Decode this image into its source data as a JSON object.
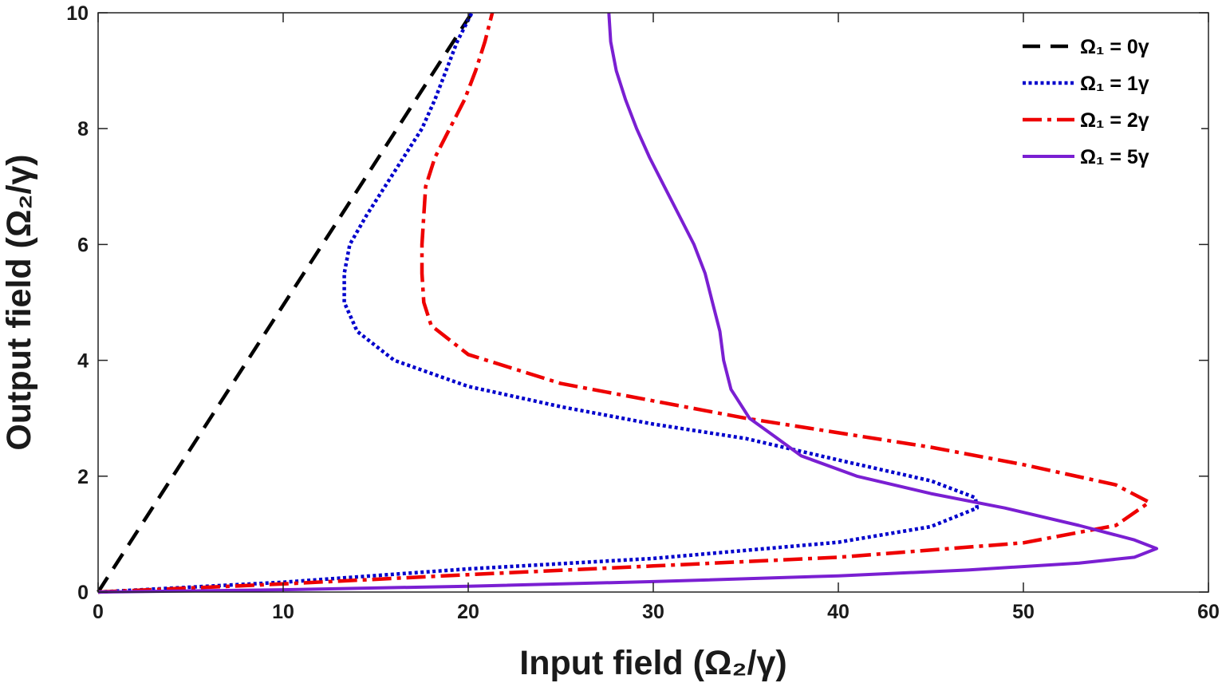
{
  "chart_data": {
    "type": "line",
    "title": "",
    "xlabel": "Input  field  (Ω₂/γ)",
    "ylabel": "Output  field  (Ω₂/γ)",
    "xlim": [
      0,
      60
    ],
    "ylim": [
      0,
      10
    ],
    "xticks": [
      0,
      10,
      20,
      30,
      40,
      50,
      60
    ],
    "yticks": [
      0,
      2,
      4,
      6,
      8,
      10
    ],
    "grid": false,
    "legend_position": "top-right",
    "series": [
      {
        "name": "Ω₁  =  0γ",
        "color": "#000000",
        "style": "dashed",
        "points": [
          [
            0,
            0
          ],
          [
            20.2,
            10
          ]
        ]
      },
      {
        "name": "Ω₁  =  1γ",
        "color": "#0000cc",
        "style": "dotted",
        "points": [
          [
            0,
            0
          ],
          [
            10,
            0.17
          ],
          [
            20,
            0.4
          ],
          [
            30,
            0.58
          ],
          [
            40,
            0.86
          ],
          [
            45,
            1.13
          ],
          [
            47.5,
            1.45
          ],
          [
            47.4,
            1.63
          ],
          [
            45,
            1.92
          ],
          [
            40,
            2.28
          ],
          [
            35,
            2.65
          ],
          [
            30,
            2.9
          ],
          [
            25,
            3.2
          ],
          [
            20,
            3.55
          ],
          [
            16,
            4.0
          ],
          [
            14,
            4.5
          ],
          [
            13.3,
            5.0
          ],
          [
            13.3,
            5.5
          ],
          [
            13.6,
            6.0
          ],
          [
            14.5,
            6.5
          ],
          [
            15.5,
            7.0
          ],
          [
            16.5,
            7.5
          ],
          [
            17.5,
            8.0
          ],
          [
            18.2,
            8.5
          ],
          [
            18.8,
            9.0
          ],
          [
            19.4,
            9.5
          ],
          [
            20.2,
            10
          ]
        ]
      },
      {
        "name": "Ω₁  =  2γ",
        "color": "#ee0000",
        "style": "dashdot",
        "points": [
          [
            0,
            0
          ],
          [
            10,
            0.14
          ],
          [
            20,
            0.3
          ],
          [
            30,
            0.45
          ],
          [
            40,
            0.6
          ],
          [
            50,
            0.85
          ],
          [
            55,
            1.15
          ],
          [
            56.8,
            1.55
          ],
          [
            55,
            1.85
          ],
          [
            50,
            2.2
          ],
          [
            45,
            2.5
          ],
          [
            40,
            2.75
          ],
          [
            35,
            3.0
          ],
          [
            30,
            3.3
          ],
          [
            25,
            3.6
          ],
          [
            20,
            4.1
          ],
          [
            18,
            4.6
          ],
          [
            17.6,
            5.0
          ],
          [
            17.5,
            5.5
          ],
          [
            17.5,
            6.0
          ],
          [
            17.7,
            7.0
          ],
          [
            18.2,
            7.5
          ],
          [
            19.0,
            8.0
          ],
          [
            19.8,
            8.5
          ],
          [
            20.4,
            9.0
          ],
          [
            20.9,
            9.5
          ],
          [
            21.3,
            10
          ]
        ]
      },
      {
        "name": "Ω₁  =  5γ",
        "color": "#7a1fd2",
        "style": "solid",
        "points": [
          [
            0,
            0
          ],
          [
            10,
            0.04
          ],
          [
            20,
            0.1
          ],
          [
            30,
            0.18
          ],
          [
            40,
            0.28
          ],
          [
            47,
            0.38
          ],
          [
            53,
            0.5
          ],
          [
            56,
            0.6
          ],
          [
            57.2,
            0.75
          ],
          [
            56,
            0.9
          ],
          [
            53,
            1.15
          ],
          [
            49,
            1.45
          ],
          [
            45,
            1.7
          ],
          [
            41,
            2.0
          ],
          [
            38,
            2.35
          ],
          [
            36.5,
            2.7
          ],
          [
            35.2,
            3.0
          ],
          [
            34.2,
            3.5
          ],
          [
            33.8,
            4.0
          ],
          [
            33.6,
            4.5
          ],
          [
            33.2,
            5.0
          ],
          [
            32.8,
            5.5
          ],
          [
            32.2,
            6.0
          ],
          [
            31.4,
            6.5
          ],
          [
            30.6,
            7.0
          ],
          [
            29.8,
            7.5
          ],
          [
            29.1,
            8.0
          ],
          [
            28.5,
            8.5
          ],
          [
            28.0,
            9.0
          ],
          [
            27.7,
            9.5
          ],
          [
            27.6,
            10
          ]
        ]
      }
    ]
  }
}
